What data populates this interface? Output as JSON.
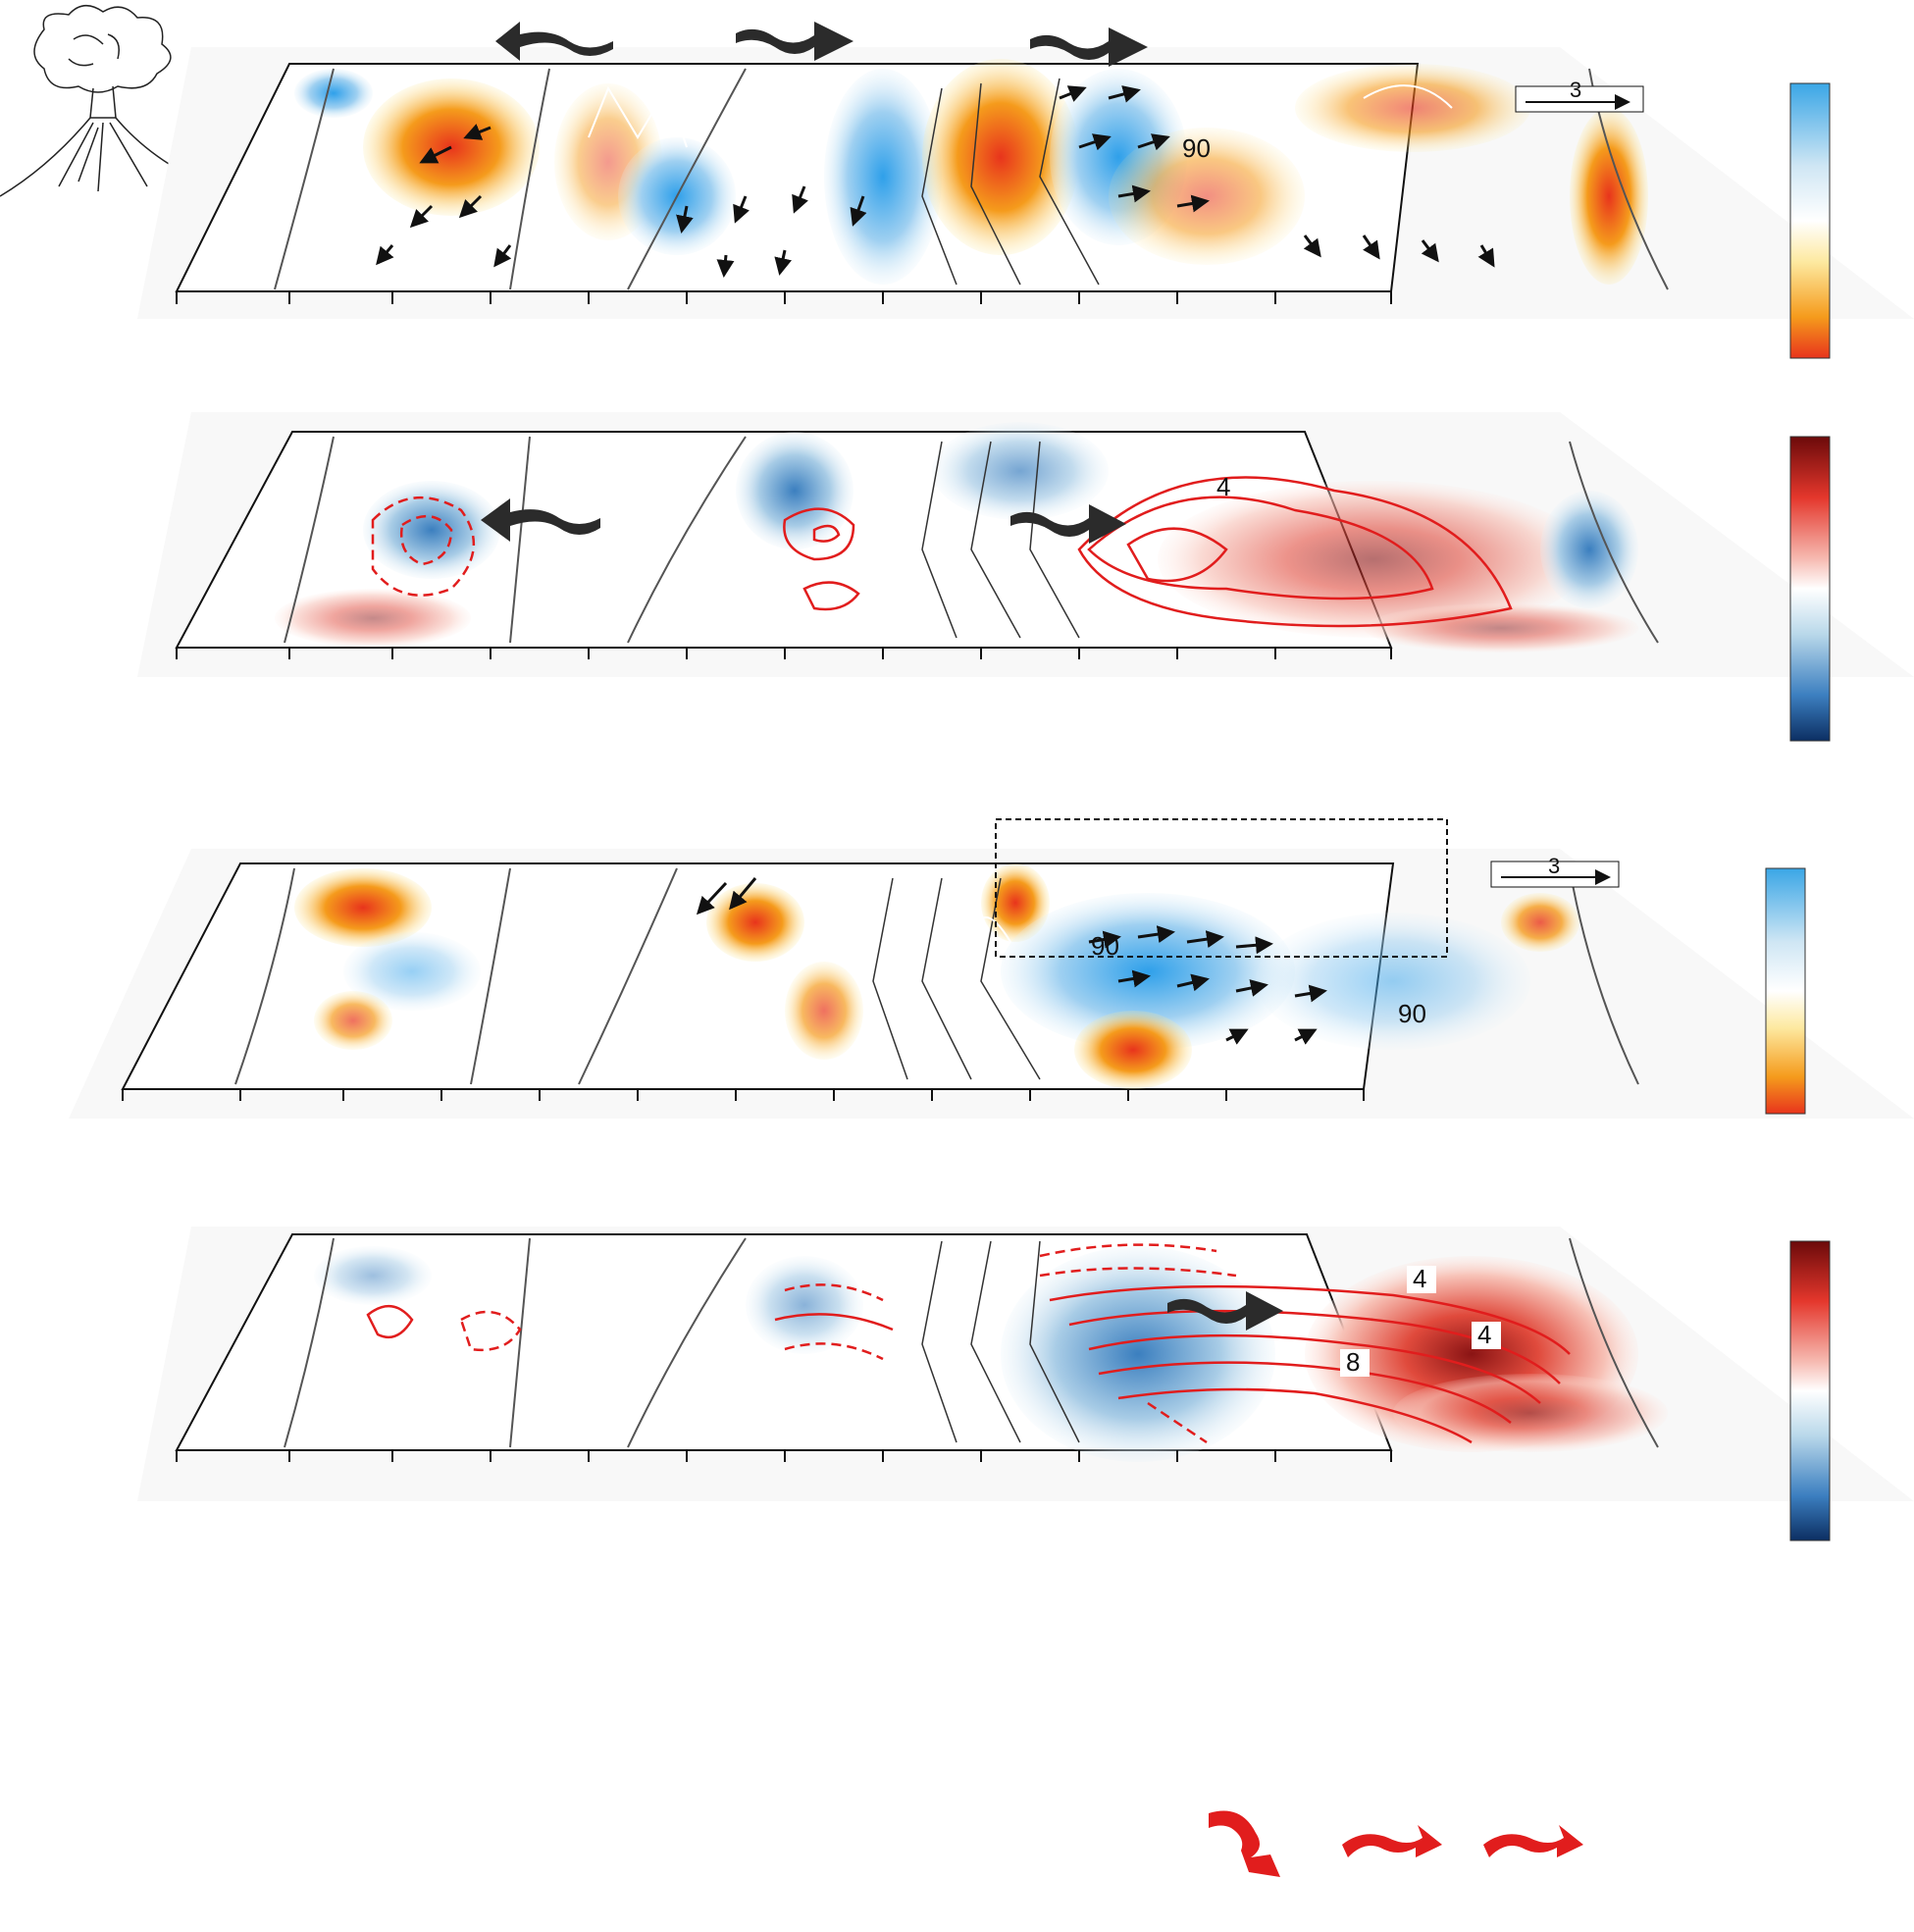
{
  "panels": [
    {
      "id": "panel-1",
      "kind": "precip-wind",
      "reference_vector_label": "3",
      "contour_labels": [
        "90"
      ],
      "colorbar": "blue-to-orange",
      "wave_arrows": [
        "westward",
        "eastward",
        "eastward"
      ]
    },
    {
      "id": "panel-2",
      "kind": "sst-heatcontent",
      "contour_labels": [
        "4"
      ],
      "colorbar": "blue-to-red",
      "wave_arrows": [
        "westward",
        "eastward"
      ],
      "propagation_arrows": 3
    },
    {
      "id": "panel-3",
      "kind": "precip-wind",
      "reference_vector_label": "3",
      "contour_labels": [
        "90",
        "90"
      ],
      "colorbar": "blue-to-orange",
      "has_dashed_box": true
    },
    {
      "id": "panel-4",
      "kind": "sst-heatcontent",
      "contour_labels": [
        "4",
        "8",
        "4"
      ],
      "colorbar": "blue-to-red",
      "wave_arrows": [
        "eastward"
      ],
      "propagation_arrows": 3
    }
  ],
  "colors": {
    "dark_red": "#7a0a0a",
    "red": "#e8341c",
    "orange": "#f59b1c",
    "yellow": "#fde9a0",
    "light_blue": "#cfe6f4",
    "blue": "#3aa6e6",
    "dark_blue": "#0c2f63",
    "wave_arrow": "#2b2b2b",
    "contour_red": "#e11d1d"
  },
  "icons": [
    "volcano-icon",
    "wave-arrow-icon",
    "curved-red-arrow-icon"
  ]
}
